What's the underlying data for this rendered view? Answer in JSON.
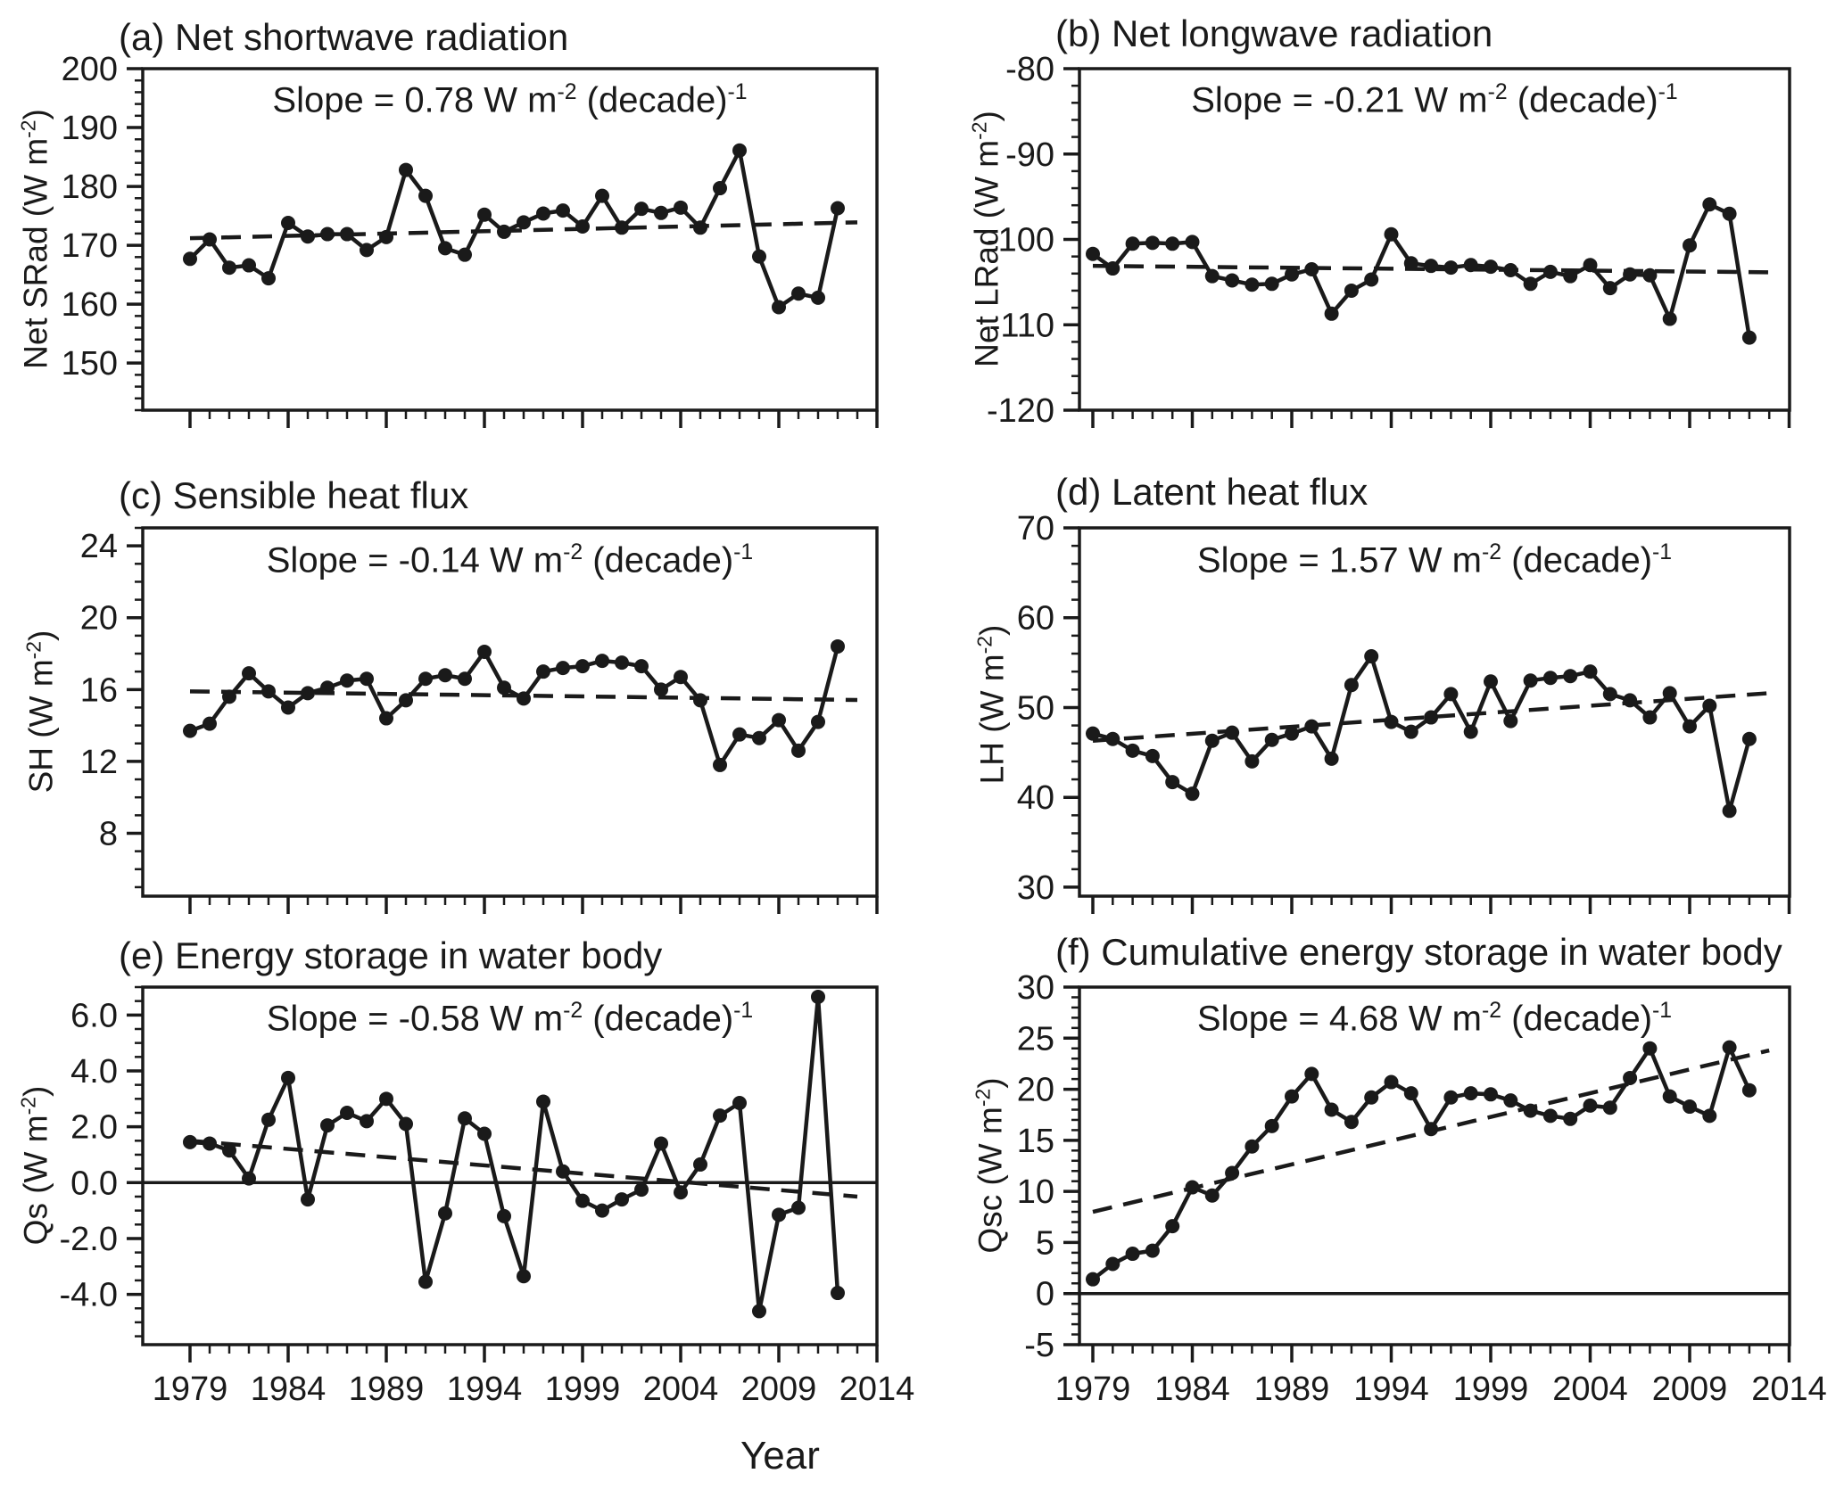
{
  "figure": {
    "xlabel": "Year",
    "x_start": 1979,
    "x_end": 2014,
    "x_major_ticks": [
      1979,
      1984,
      1989,
      1994,
      1999,
      2004,
      2009,
      2014
    ],
    "ink_color": "#1a1a1a"
  },
  "chart_data": [
    {
      "id": "a",
      "type": "line",
      "title": "(a) Net shortwave radiation",
      "slope": {
        "pre": "Slope =  0.78 W m",
        "sup1": "-2",
        "mid": " (decade)",
        "sup2": "-1"
      },
      "ylabel": {
        "pre": "Net SRad (W m",
        "sup": "-2",
        "post": ")"
      },
      "ylim": [
        142,
        200
      ],
      "yticks": [
        150,
        160,
        170,
        180,
        190,
        200
      ],
      "ytick_labels": [
        "150",
        "160",
        "170",
        "180",
        "190",
        "200"
      ],
      "y_minor_step": 2,
      "x": [
        1979,
        1980,
        1981,
        1982,
        1983,
        1984,
        1985,
        1986,
        1987,
        1988,
        1989,
        1990,
        1991,
        1992,
        1993,
        1994,
        1995,
        1996,
        1997,
        1998,
        1999,
        2000,
        2001,
        2002,
        2003,
        2004,
        2005,
        2006,
        2007,
        2008,
        2009,
        2010,
        2011,
        2012
      ],
      "values": [
        167.7,
        171.0,
        166.2,
        166.6,
        164.4,
        173.8,
        171.5,
        171.9,
        171.9,
        169.2,
        171.4,
        182.8,
        178.4,
        169.5,
        168.4,
        175.2,
        172.3,
        173.9,
        175.4,
        175.9,
        173.2,
        178.4,
        173.0,
        176.2,
        175.5,
        176.4,
        173.0,
        179.7,
        186.1,
        168.1,
        159.5,
        161.8,
        161.1,
        176.3
      ],
      "trend": {
        "x": [
          1979,
          2013
        ],
        "y": [
          171.2,
          173.9
        ]
      },
      "zero_line": false,
      "show_x_labels": false
    },
    {
      "id": "b",
      "type": "line",
      "title": "(b) Net longwave radiation",
      "slope": {
        "pre": "Slope = -0.21 W m",
        "sup1": "-2",
        "mid": " (decade)",
        "sup2": "-1"
      },
      "ylabel": {
        "pre": "Net LRad (W m",
        "sup": "-2",
        "post": ")"
      },
      "ylim": [
        -120,
        -80
      ],
      "yticks": [
        -120,
        -110,
        -100,
        -90,
        -80
      ],
      "ytick_labels": [
        "-120",
        "-110",
        "-100",
        "-90",
        "-80"
      ],
      "y_minor_step": 2,
      "x": [
        1979,
        1980,
        1981,
        1982,
        1983,
        1984,
        1985,
        1986,
        1987,
        1988,
        1989,
        1990,
        1991,
        1992,
        1993,
        1994,
        1995,
        1996,
        1997,
        1998,
        1999,
        2000,
        2001,
        2002,
        2003,
        2004,
        2005,
        2006,
        2007,
        2008,
        2009,
        2010,
        2011,
        2012
      ],
      "values": [
        -101.7,
        -103.4,
        -100.5,
        -100.4,
        -100.5,
        -100.3,
        -104.3,
        -104.8,
        -105.3,
        -105.2,
        -104.1,
        -103.5,
        -108.7,
        -106.0,
        -104.7,
        -99.4,
        -102.8,
        -103.1,
        -103.3,
        -103.0,
        -103.2,
        -103.6,
        -105.2,
        -103.8,
        -104.3,
        -103.0,
        -105.7,
        -104.1,
        -104.2,
        -109.3,
        -100.7,
        -95.9,
        -97.0,
        -111.5
      ],
      "trend": {
        "x": [
          1979,
          2013
        ],
        "y": [
          -103.1,
          -103.85
        ]
      },
      "zero_line": false,
      "show_x_labels": false
    },
    {
      "id": "c",
      "type": "line",
      "title": "(c) Sensible heat flux",
      "slope": {
        "pre": "Slope = -0.14 W m",
        "sup1": "-2",
        "mid": " (decade)",
        "sup2": "-1"
      },
      "ylabel": {
        "pre": "SH (W m",
        "sup": "-2",
        "post": ")"
      },
      "ylim": [
        4.5,
        25
      ],
      "yticks": [
        8,
        12,
        16,
        20,
        24
      ],
      "ytick_labels": [
        "8",
        "12",
        "16",
        "20",
        "24"
      ],
      "y_minor_step": 1,
      "x": [
        1979,
        1980,
        1981,
        1982,
        1983,
        1984,
        1985,
        1986,
        1987,
        1988,
        1989,
        1990,
        1991,
        1992,
        1993,
        1994,
        1995,
        1996,
        1997,
        1998,
        1999,
        2000,
        2001,
        2002,
        2003,
        2004,
        2005,
        2006,
        2007,
        2008,
        2009,
        2010,
        2011,
        2012
      ],
      "values": [
        13.7,
        14.1,
        15.6,
        16.9,
        15.9,
        15.0,
        15.8,
        16.1,
        16.5,
        16.6,
        14.4,
        15.4,
        16.6,
        16.8,
        16.6,
        18.1,
        16.1,
        15.5,
        17.0,
        17.2,
        17.3,
        17.6,
        17.5,
        17.3,
        16.0,
        16.7,
        15.4,
        11.8,
        13.5,
        13.3,
        14.3,
        12.6,
        14.2,
        18.4
      ],
      "trend": {
        "x": [
          1979,
          2013
        ],
        "y": [
          15.9,
          15.42
        ]
      },
      "zero_line": false,
      "show_x_labels": false
    },
    {
      "id": "d",
      "type": "line",
      "title": "(d) Latent heat flux",
      "slope": {
        "pre": "Slope =  1.57 W m",
        "sup1": "-2",
        "mid": " (decade)",
        "sup2": "-1"
      },
      "ylabel": {
        "pre": "LH (W m",
        "sup": "-2",
        "post": ")"
      },
      "ylim": [
        29,
        70
      ],
      "yticks": [
        30,
        40,
        50,
        60,
        70
      ],
      "ytick_labels": [
        "30",
        "40",
        "50",
        "60",
        "70"
      ],
      "y_minor_step": 2,
      "x": [
        1979,
        1980,
        1981,
        1982,
        1983,
        1984,
        1985,
        1986,
        1987,
        1988,
        1989,
        1990,
        1991,
        1992,
        1993,
        1994,
        1995,
        1996,
        1997,
        1998,
        1999,
        2000,
        2001,
        2002,
        2003,
        2004,
        2005,
        2006,
        2007,
        2008,
        2009,
        2010,
        2011,
        2012
      ],
      "values": [
        47.1,
        46.5,
        45.2,
        44.6,
        41.7,
        40.4,
        46.3,
        47.2,
        44.0,
        46.4,
        47.1,
        47.9,
        44.3,
        52.5,
        55.7,
        48.4,
        47.3,
        48.9,
        51.5,
        47.3,
        52.9,
        48.5,
        53.0,
        53.3,
        53.5,
        54.0,
        51.5,
        50.8,
        48.9,
        51.6,
        47.9,
        50.2,
        38.5,
        46.5
      ],
      "trend": {
        "x": [
          1979,
          2013
        ],
        "y": [
          46.3,
          51.6
        ]
      },
      "zero_line": false,
      "show_x_labels": false
    },
    {
      "id": "e",
      "type": "line",
      "title": "(e) Energy storage in water body",
      "slope": {
        "pre": "Slope = -0.58 W m",
        "sup1": "-2",
        "mid": " (decade)",
        "sup2": "-1"
      },
      "ylabel": {
        "pre": "Qs (W m",
        "sup": "-2",
        "post": ")"
      },
      "ylim": [
        -5.8,
        7.0
      ],
      "yticks": [
        -4,
        -2,
        0,
        2,
        4,
        6
      ],
      "ytick_labels": [
        "-4.0",
        "-2.0",
        "0.0",
        "2.0",
        "4.0",
        "6.0"
      ],
      "y_minor_step": 0.5,
      "x": [
        1979,
        1980,
        1981,
        1982,
        1983,
        1984,
        1985,
        1986,
        1987,
        1988,
        1989,
        1990,
        1991,
        1992,
        1993,
        1994,
        1995,
        1996,
        1997,
        1998,
        1999,
        2000,
        2001,
        2002,
        2003,
        2004,
        2005,
        2006,
        2007,
        2008,
        2009,
        2010,
        2011,
        2012
      ],
      "values": [
        1.45,
        1.4,
        1.15,
        0.15,
        2.25,
        3.75,
        -0.6,
        2.05,
        2.5,
        2.2,
        3.0,
        2.1,
        -3.55,
        -1.1,
        2.3,
        1.75,
        -1.2,
        -3.35,
        2.9,
        0.4,
        -0.65,
        -1.0,
        -0.6,
        -0.25,
        1.4,
        -0.35,
        0.65,
        2.4,
        2.85,
        -4.6,
        -1.15,
        -0.9,
        6.65,
        -3.95
      ],
      "trend": {
        "x": [
          1979,
          2013
        ],
        "y": [
          1.5,
          -0.5
        ]
      },
      "zero_line": true,
      "show_x_labels": true
    },
    {
      "id": "f",
      "type": "line",
      "title": "(f) Cumulative energy storage in water body",
      "slope": {
        "pre": "Slope =  4.68 W m",
        "sup1": "-2",
        "mid": " (decade)",
        "sup2": "-1"
      },
      "ylabel": {
        "pre": "Qsc (W m",
        "sup": "-2",
        "post": ")"
      },
      "ylim": [
        -5,
        30
      ],
      "yticks": [
        -5,
        0,
        5,
        10,
        15,
        20,
        25,
        30
      ],
      "ytick_labels": [
        "-5",
        "0",
        "5",
        "10",
        "15",
        "20",
        "25",
        "30"
      ],
      "y_minor_step": 1,
      "x": [
        1979,
        1980,
        1981,
        1982,
        1983,
        1984,
        1985,
        1986,
        1987,
        1988,
        1989,
        1990,
        1991,
        1992,
        1993,
        1994,
        1995,
        1996,
        1997,
        1998,
        1999,
        2000,
        2001,
        2002,
        2003,
        2004,
        2005,
        2006,
        2007,
        2008,
        2009,
        2010,
        2011,
        2012
      ],
      "values": [
        1.4,
        2.9,
        3.9,
        4.2,
        6.6,
        10.4,
        9.6,
        11.8,
        14.4,
        16.4,
        19.3,
        21.5,
        18.0,
        16.8,
        19.2,
        20.7,
        19.6,
        16.1,
        19.2,
        19.6,
        19.5,
        18.9,
        17.9,
        17.4,
        17.1,
        18.4,
        18.2,
        21.1,
        24.0,
        19.3,
        18.3,
        17.4,
        24.1,
        19.9
      ],
      "trend": {
        "x": [
          1979,
          2013
        ],
        "y": [
          8.0,
          23.8
        ]
      },
      "zero_line": true,
      "show_x_labels": true
    }
  ]
}
